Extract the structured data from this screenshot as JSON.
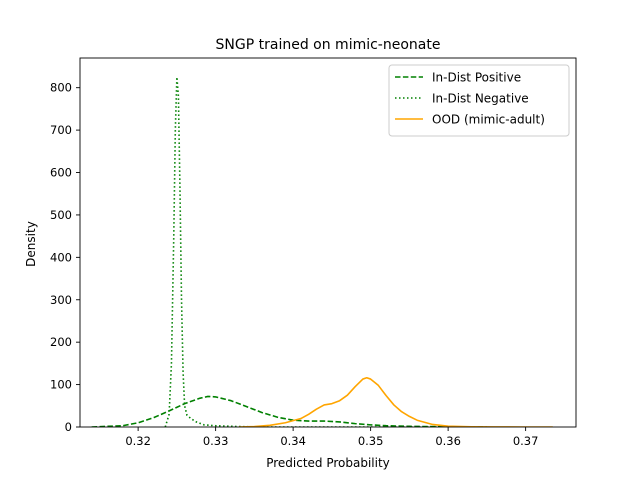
{
  "chart_data": {
    "type": "line",
    "title": "SNGP trained on mimic-neonate",
    "xlabel": "Predicted Probability",
    "ylabel": "Density",
    "xlim": [
      0.3125,
      0.3765
    ],
    "ylim": [
      0,
      870
    ],
    "xticks": [
      0.32,
      0.33,
      0.34,
      0.35,
      0.36,
      0.37
    ],
    "xtick_labels": [
      "0.32",
      "0.33",
      "0.34",
      "0.35",
      "0.36",
      "0.37"
    ],
    "yticks": [
      0,
      100,
      200,
      300,
      400,
      500,
      600,
      700,
      800
    ],
    "ytick_labels": [
      "0",
      "100",
      "200",
      "300",
      "400",
      "500",
      "600",
      "700",
      "800"
    ],
    "grid": false,
    "legend_position": "top-right",
    "series": [
      {
        "name": "In-Dist Positive",
        "color": "#008000",
        "dash": "dashed",
        "points": [
          [
            0.314,
            0
          ],
          [
            0.318,
            3
          ],
          [
            0.32,
            10
          ],
          [
            0.322,
            22
          ],
          [
            0.324,
            38
          ],
          [
            0.326,
            55
          ],
          [
            0.328,
            68
          ],
          [
            0.329,
            72
          ],
          [
            0.33,
            71
          ],
          [
            0.332,
            62
          ],
          [
            0.334,
            48
          ],
          [
            0.336,
            34
          ],
          [
            0.338,
            23
          ],
          [
            0.34,
            16
          ],
          [
            0.342,
            14
          ],
          [
            0.344,
            14
          ],
          [
            0.346,
            12
          ],
          [
            0.348,
            8
          ],
          [
            0.35,
            5
          ],
          [
            0.352,
            3
          ],
          [
            0.355,
            1.5
          ],
          [
            0.36,
            0.5
          ],
          [
            0.365,
            0
          ]
        ]
      },
      {
        "name": "In-Dist Negative",
        "color": "#008000",
        "dash": "dotted",
        "points": [
          [
            0.3235,
            0
          ],
          [
            0.324,
            30
          ],
          [
            0.3243,
            150
          ],
          [
            0.3246,
            450
          ],
          [
            0.3248,
            700
          ],
          [
            0.325,
            825
          ],
          [
            0.3252,
            780
          ],
          [
            0.3254,
            560
          ],
          [
            0.3256,
            300
          ],
          [
            0.3258,
            130
          ],
          [
            0.326,
            50
          ],
          [
            0.3263,
            28
          ],
          [
            0.3268,
            20
          ],
          [
            0.3275,
            12
          ],
          [
            0.3285,
            5
          ],
          [
            0.33,
            3
          ],
          [
            0.333,
            1
          ],
          [
            0.336,
            0
          ],
          [
            0.34,
            0
          ],
          [
            0.345,
            0
          ],
          [
            0.35,
            0
          ],
          [
            0.355,
            0
          ],
          [
            0.36,
            0
          ]
        ]
      },
      {
        "name": "OOD (mimic-adult)",
        "color": "#ffa500",
        "dash": "solid",
        "points": [
          [
            0.333,
            0
          ],
          [
            0.335,
            1
          ],
          [
            0.337,
            4
          ],
          [
            0.339,
            10
          ],
          [
            0.341,
            20
          ],
          [
            0.342,
            30
          ],
          [
            0.343,
            42
          ],
          [
            0.344,
            52
          ],
          [
            0.345,
            55
          ],
          [
            0.346,
            62
          ],
          [
            0.347,
            75
          ],
          [
            0.348,
            95
          ],
          [
            0.349,
            113
          ],
          [
            0.3495,
            116
          ],
          [
            0.35,
            113
          ],
          [
            0.351,
            98
          ],
          [
            0.352,
            74
          ],
          [
            0.353,
            52
          ],
          [
            0.354,
            36
          ],
          [
            0.355,
            25
          ],
          [
            0.356,
            16
          ],
          [
            0.358,
            6
          ],
          [
            0.36,
            2
          ],
          [
            0.363,
            0.5
          ],
          [
            0.366,
            0.1
          ],
          [
            0.37,
            0
          ],
          [
            0.3735,
            0
          ]
        ]
      }
    ]
  }
}
